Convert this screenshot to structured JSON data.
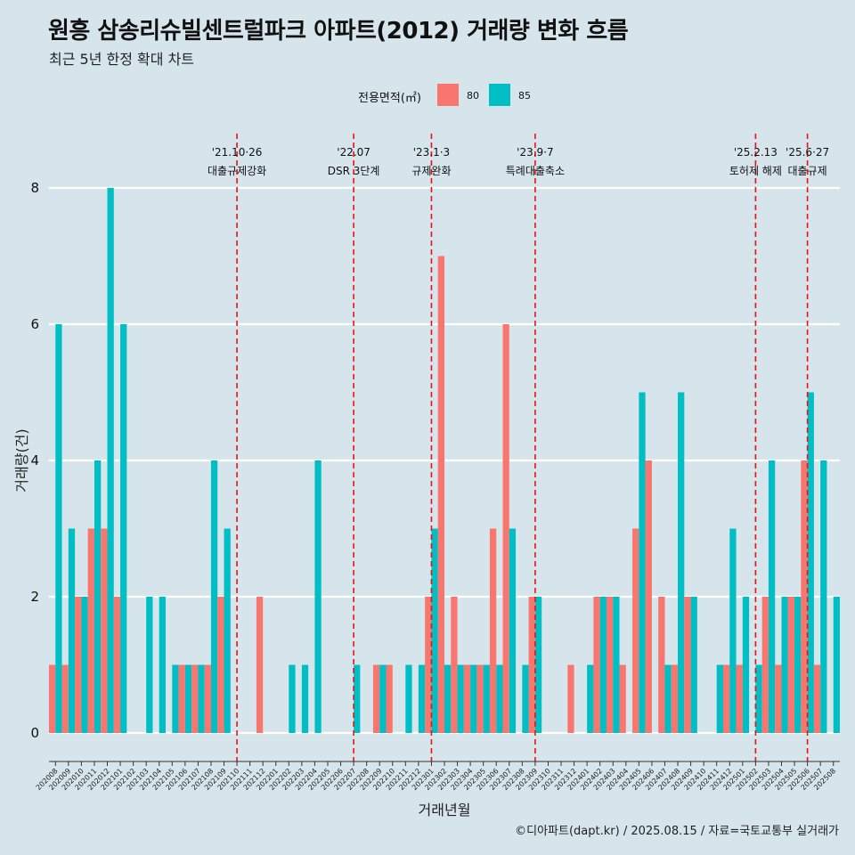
{
  "title": "원흥 삼송리슈빌센트럴파크 아파트(2012) 거래량 변화 흐름",
  "subtitle": "최근 5년 한정 확대 차트",
  "caption": "©디아파트(dapt.kr) / 2025.08.15 / 자료=국토교통부 실거래가",
  "colors": {
    "s80": "#f8766d",
    "s85": "#00bfc4",
    "event_line": "#ee1111",
    "grid": "#ffffff",
    "background": "#d6e4ec"
  },
  "chart_data": {
    "type": "bar",
    "xlabel": "거래년월",
    "ylabel": "거래량(건)",
    "ylim": [
      0,
      8
    ],
    "yticks": [
      0,
      2,
      4,
      6,
      8
    ],
    "legend": {
      "title": "전용면적(㎡)",
      "position": "top"
    },
    "categories": [
      "202008",
      "202009",
      "202010",
      "202011",
      "202012",
      "202101",
      "202102",
      "202103",
      "202104",
      "202105",
      "202106",
      "202107",
      "202108",
      "202109",
      "202110",
      "202111",
      "202112",
      "202201",
      "202202",
      "202203",
      "202204",
      "202205",
      "202206",
      "202207",
      "202208",
      "202209",
      "202210",
      "202211",
      "202212",
      "202301",
      "202302",
      "202303",
      "202304",
      "202305",
      "202306",
      "202307",
      "202308",
      "202309",
      "202310",
      "202311",
      "202312",
      "202401",
      "202402",
      "202403",
      "202404",
      "202405",
      "202406",
      "202407",
      "202408",
      "202409",
      "202410",
      "202411",
      "202412",
      "202501",
      "202502",
      "202503",
      "202504",
      "202505",
      "202506",
      "202507",
      "202508"
    ],
    "series": [
      {
        "name": "80",
        "values": [
          1,
          1,
          2,
          3,
          3,
          2,
          0,
          0,
          0,
          0,
          1,
          1,
          1,
          2,
          0,
          0,
          2,
          0,
          0,
          0,
          0,
          0,
          0,
          0,
          0,
          1,
          1,
          0,
          0,
          2,
          7,
          2,
          1,
          1,
          3,
          6,
          0,
          2,
          0,
          0,
          1,
          0,
          2,
          2,
          1,
          3,
          4,
          2,
          1,
          2,
          0,
          0,
          1,
          1,
          0,
          2,
          1,
          2,
          4,
          1,
          0
        ]
      },
      {
        "name": "85",
        "values": [
          6,
          3,
          2,
          4,
          8,
          6,
          0,
          2,
          2,
          1,
          1,
          1,
          4,
          3,
          0,
          0,
          0,
          0,
          1,
          1,
          4,
          0,
          0,
          1,
          0,
          1,
          0,
          1,
          1,
          3,
          1,
          1,
          1,
          1,
          1,
          3,
          1,
          2,
          0,
          0,
          0,
          1,
          2,
          2,
          0,
          5,
          0,
          1,
          5,
          2,
          0,
          1,
          3,
          2,
          1,
          4,
          2,
          2,
          5,
          4,
          2
        ]
      }
    ],
    "events": [
      {
        "month": "202110",
        "date": "'21.10·26",
        "label": "대출규제강화"
      },
      {
        "month": "202207",
        "date": "'22.07",
        "label": "DSR 3단계"
      },
      {
        "month": "202301",
        "date": "'23.1·3",
        "label": "규제완화"
      },
      {
        "month": "202309",
        "date": "'23.9·7",
        "label": "특례대출축소"
      },
      {
        "month": "202502",
        "date": "'25.2.13",
        "label": "토허제 해제"
      },
      {
        "month": "202506",
        "date": "'25.6·27",
        "label": "대출규제"
      }
    ]
  }
}
